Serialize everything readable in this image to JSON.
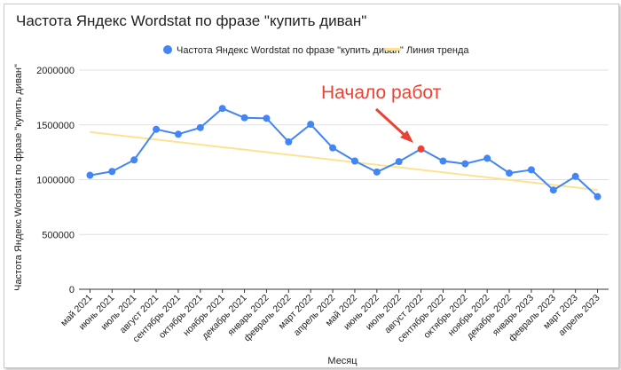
{
  "chart_data": {
    "type": "line",
    "title": "Частота Яндекс Wordstat по фразе \"купить диван\"",
    "xlabel": "Месяц",
    "ylabel": "Частота Яндекс Wordstat по фразе \"купить диван\"",
    "ylim": [
      0,
      2000000
    ],
    "yticks": [
      0,
      500000,
      1000000,
      1500000,
      2000000
    ],
    "grid": true,
    "legend_position": "top",
    "categories": [
      "май 2021",
      "июнь 2021",
      "июль 2021",
      "август 2021",
      "сентябрь 2021",
      "октябрь 2021",
      "ноябрь 2021",
      "декабрь 2021",
      "январь 2022",
      "февраль 2022",
      "март 2022",
      "апрель 2022",
      "май 2022",
      "июнь 2022",
      "июль 2022",
      "август 2022",
      "сентябрь 2022",
      "октябрь 2022",
      "ноябрь 2022",
      "декабрь 2022",
      "январь 2023",
      "февраль 2023",
      "март 2023",
      "апрель 2023"
    ],
    "series": [
      {
        "name": "Частота Яндекс Wordstat по фразе \"купить диван\"",
        "color": "#4285f4",
        "values": [
          1040000,
          1075000,
          1180000,
          1460000,
          1415000,
          1475000,
          1650000,
          1565000,
          1560000,
          1345000,
          1505000,
          1290000,
          1170000,
          1070000,
          1165000,
          1280000,
          1170000,
          1145000,
          1195000,
          1060000,
          1090000,
          905000,
          1030000,
          845000
        ]
      },
      {
        "name": "Линия тренда",
        "type": "trendline",
        "color": "#fde293",
        "values": [
          1435000,
          1412000,
          1389000,
          1366000,
          1343000,
          1320000,
          1297000,
          1274000,
          1251000,
          1228000,
          1205000,
          1182000,
          1159000,
          1136000,
          1113000,
          1090000,
          1067000,
          1044000,
          1021000,
          998000,
          975000,
          952000,
          929000,
          906000
        ]
      }
    ],
    "annotation": {
      "text": "Начало работ",
      "category": "август 2022",
      "color": "#ea4335",
      "highlight_color": "#ea4335"
    }
  }
}
